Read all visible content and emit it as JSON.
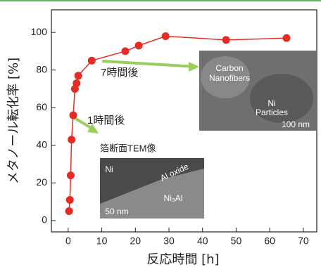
{
  "chart_data": {
    "type": "line",
    "x_label": "反応時間 [h]",
    "y_label": "メタノール転化率 [%]",
    "x": [
      0.25,
      0.5,
      0.75,
      1,
      1.5,
      2,
      2.5,
      3,
      7,
      17,
      21,
      29,
      47,
      65
    ],
    "series": [
      {
        "color": "#e52b24",
        "values": [
          5,
          11,
          24,
          43,
          56,
          70,
          73,
          77,
          85,
          90,
          93,
          98,
          96,
          97
        ]
      }
    ],
    "xlim": [
      -5,
      74
    ],
    "xticks": [
      0,
      10,
      20,
      30,
      40,
      50,
      60,
      70
    ],
    "ylim": [
      -6,
      112
    ],
    "yticks": [
      0,
      20,
      40,
      60,
      80,
      100
    ],
    "annotations": [
      "7時間後",
      "1時間後",
      "箔断面TEM像",
      "Carbon",
      "Nanofibers",
      "Ni",
      "Particles",
      "100 nm",
      "Ni",
      "Al oxide",
      "Ni₃Al",
      "50 nm"
    ]
  }
}
